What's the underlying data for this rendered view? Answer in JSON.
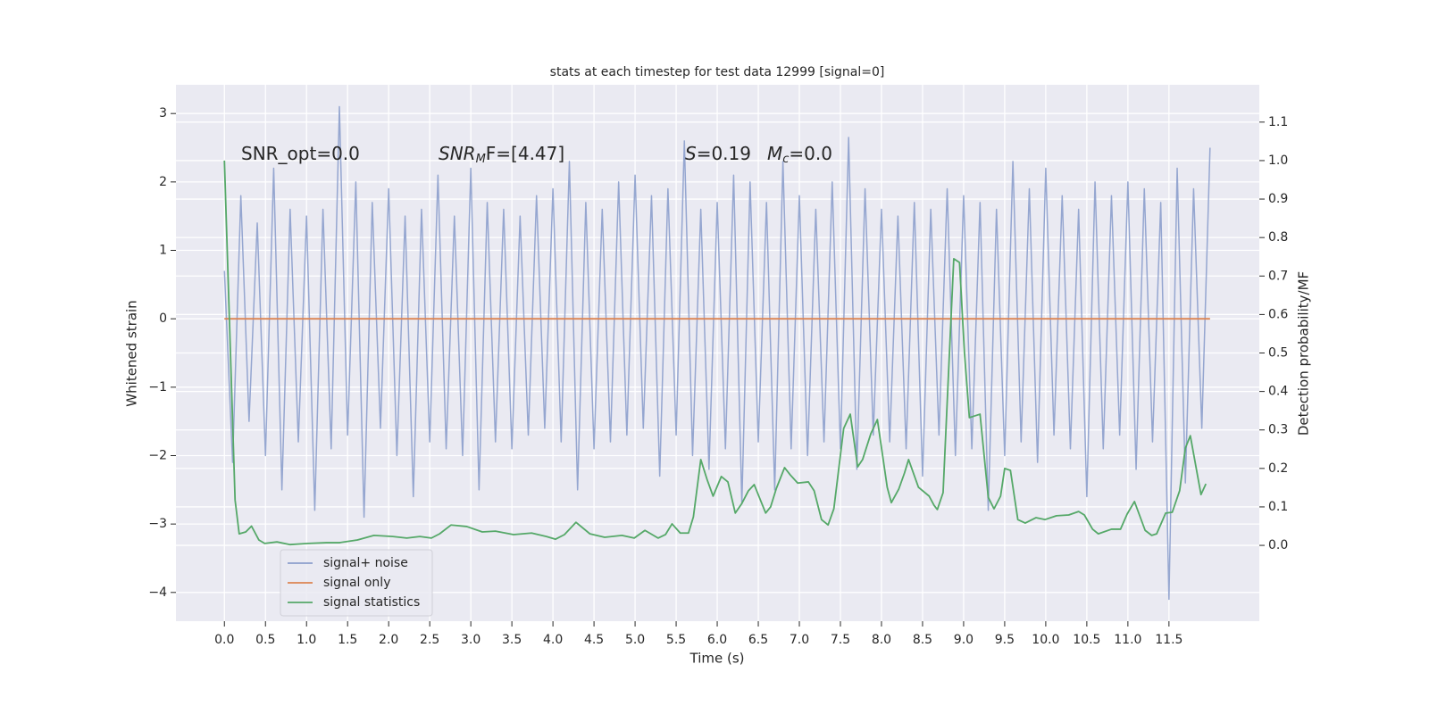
{
  "chart_data": {
    "type": "line",
    "title": "stats at each timestep for test data 12999 [signal=0]",
    "xlabel": "Time (s)",
    "ylabel": "Whitened strain",
    "y2label": "Detection probability/MF",
    "annotations": [
      [
        "SNR_opt=0.0"
      ],
      [
        "SNR",
        "M",
        "F=[4.47]"
      ],
      [
        "S",
        "=0.19"
      ],
      [
        "M",
        "c",
        "=0.0"
      ]
    ],
    "xlim": [
      -0.59,
      12.6
    ],
    "ylim": [
      -4.42,
      3.42
    ],
    "y2lim": [
      -0.197,
      1.197
    ],
    "xticks": [
      {
        "value": 0,
        "label": "0.0"
      },
      {
        "value": 0.5,
        "label": "0.5"
      },
      {
        "value": 1,
        "label": "1.0"
      },
      {
        "value": 1.5,
        "label": "1.5"
      },
      {
        "value": 2,
        "label": "2.0"
      },
      {
        "value": 2.5,
        "label": "2.5"
      },
      {
        "value": 3,
        "label": "3.0"
      },
      {
        "value": 3.5,
        "label": "3.5"
      },
      {
        "value": 4,
        "label": "4.0"
      },
      {
        "value": 4.5,
        "label": "4.5"
      },
      {
        "value": 5,
        "label": "5.0"
      },
      {
        "value": 5.5,
        "label": "5.5"
      },
      {
        "value": 6,
        "label": "6.0"
      },
      {
        "value": 6.5,
        "label": "6.5"
      },
      {
        "value": 7,
        "label": "7.0"
      },
      {
        "value": 7.5,
        "label": "7.5"
      },
      {
        "value": 8,
        "label": "8.0"
      },
      {
        "value": 8.5,
        "label": "8.5"
      },
      {
        "value": 9,
        "label": "9.0"
      },
      {
        "value": 9.5,
        "label": "9.5"
      },
      {
        "value": 10,
        "label": "10.0"
      },
      {
        "value": 10.5,
        "label": "10.5"
      },
      {
        "value": 11,
        "label": "11.0"
      },
      {
        "value": 11.5,
        "label": "11.5"
      }
    ],
    "yticks": [
      {
        "value": -4,
        "label": "−4"
      },
      {
        "value": -3,
        "label": "−3"
      },
      {
        "value": -2,
        "label": "−2"
      },
      {
        "value": -1,
        "label": "−1"
      },
      0,
      1,
      2,
      3
    ],
    "y2ticks": [
      {
        "value": 0,
        "label": "0.0"
      },
      {
        "value": 0.1,
        "label": "0.1"
      },
      {
        "value": 0.2,
        "label": "0.2"
      },
      {
        "value": 0.3,
        "label": "0.3"
      },
      {
        "value": 0.4,
        "label": "0.4"
      },
      {
        "value": 0.5,
        "label": "0.5"
      },
      {
        "value": 0.6,
        "label": "0.6"
      },
      {
        "value": 0.7,
        "label": "0.7"
      },
      {
        "value": 0.8,
        "label": "0.8"
      },
      {
        "value": 0.9,
        "label": "0.9"
      },
      {
        "value": 1.0,
        "label": "1.0"
      },
      {
        "value": 1.1,
        "label": "1.1"
      }
    ],
    "grid": true,
    "legend": "lower left",
    "series": [
      {
        "name": "signal+ noise",
        "color": "#8c9fcc",
        "axis": "y",
        "x": [
          0,
          0.1,
          0.2,
          0.3,
          0.4,
          0.5,
          0.6,
          0.7,
          0.8,
          0.9,
          1,
          1.1,
          1.2,
          1.3,
          1.4,
          1.5,
          1.6,
          1.7,
          1.8,
          1.9,
          2,
          2.1,
          2.2,
          2.3,
          2.4,
          2.5,
          2.6,
          2.7,
          2.8,
          2.9,
          3,
          3.1,
          3.2,
          3.3,
          3.4,
          3.5,
          3.6,
          3.7,
          3.8,
          3.9,
          4,
          4.1,
          4.2,
          4.3,
          4.4,
          4.5,
          4.6,
          4.7,
          4.8,
          4.9,
          5,
          5.1,
          5.2,
          5.3,
          5.4,
          5.5,
          5.6,
          5.7,
          5.8,
          5.9,
          6,
          6.1,
          6.2,
          6.3,
          6.4,
          6.5,
          6.6,
          6.7,
          6.8,
          6.9,
          7,
          7.1,
          7.2,
          7.3,
          7.4,
          7.5,
          7.6,
          7.7,
          7.8,
          7.9,
          8,
          8.1,
          8.2,
          8.3,
          8.4,
          8.5,
          8.6,
          8.7,
          8.8,
          8.9,
          9,
          9.1,
          9.2,
          9.3,
          9.4,
          9.5,
          9.6,
          9.7,
          9.8,
          9.9,
          10,
          10.1,
          10.2,
          10.3,
          10.4,
          10.5,
          10.6,
          10.7,
          10.8,
          10.9,
          11,
          11.1,
          11.2,
          11.3,
          11.4,
          11.5,
          11.6,
          11.7,
          11.8,
          11.9,
          12
        ],
        "values": [
          0.7,
          -2.1,
          1.8,
          -1.5,
          1.4,
          -2.0,
          2.2,
          -2.5,
          1.6,
          -1.8,
          1.5,
          -2.8,
          1.6,
          -1.9,
          3.1,
          -1.7,
          2.0,
          -2.9,
          1.7,
          -1.6,
          1.9,
          -2.0,
          1.5,
          -2.6,
          1.6,
          -1.8,
          2.1,
          -1.9,
          1.5,
          -2.0,
          2.2,
          -2.5,
          1.7,
          -1.8,
          1.6,
          -1.9,
          1.5,
          -1.7,
          1.8,
          -1.6,
          1.9,
          -1.8,
          2.3,
          -2.5,
          1.7,
          -1.9,
          1.6,
          -1.8,
          2.0,
          -1.7,
          2.1,
          -1.6,
          1.8,
          -2.3,
          1.9,
          -1.7,
          2.6,
          -2.0,
          1.6,
          -2.2,
          1.7,
          -1.9,
          2.1,
          -2.7,
          2.0,
          -1.8,
          1.7,
          -2.5,
          2.3,
          -1.9,
          1.8,
          -2.0,
          1.6,
          -1.8,
          2.0,
          -1.9,
          2.65,
          -2.2,
          1.9,
          -1.7,
          1.6,
          -1.8,
          1.5,
          -1.9,
          1.7,
          -2.3,
          1.6,
          -1.7,
          1.9,
          -2.0,
          1.8,
          -1.9,
          1.7,
          -2.8,
          1.6,
          -2.0,
          2.3,
          -1.8,
          1.9,
          -2.1,
          2.2,
          -1.7,
          1.8,
          -1.9,
          1.6,
          -2.6,
          2.0,
          -1.9,
          1.8,
          -1.7,
          2.0,
          -2.2,
          1.9,
          -1.8,
          1.7,
          -4.1,
          2.2,
          -2.4,
          1.9,
          -1.6,
          2.5
        ]
      },
      {
        "name": "signal only",
        "color": "#dd8452",
        "axis": "y",
        "x": [
          0,
          12
        ],
        "values": [
          0,
          0
        ]
      },
      {
        "name": "signal statistics",
        "color": "#55a868",
        "axis": "y2",
        "x": [
          0,
          0.13,
          0.18,
          0.26,
          0.33,
          0.42,
          0.49,
          0.64,
          0.8,
          1.02,
          1.24,
          1.4,
          1.62,
          1.82,
          2.05,
          2.22,
          2.38,
          2.52,
          2.62,
          2.76,
          2.95,
          3.14,
          3.3,
          3.52,
          3.74,
          3.92,
          4.03,
          4.14,
          4.28,
          4.45,
          4.63,
          4.84,
          4.99,
          5.12,
          5.28,
          5.37,
          5.45,
          5.55,
          5.65,
          5.71,
          5.8,
          5.88,
          5.95,
          6.05,
          6.13,
          6.22,
          6.3,
          6.38,
          6.45,
          6.59,
          6.65,
          6.72,
          6.82,
          6.89,
          6.98,
          7.11,
          7.18,
          7.27,
          7.35,
          7.42,
          7.54,
          7.62,
          7.71,
          7.77,
          7.87,
          7.95,
          8.07,
          8.12,
          8.21,
          8.28,
          8.33,
          8.45,
          8.58,
          8.64,
          8.68,
          8.75,
          8.82,
          8.88,
          8.95,
          9.01,
          9.07,
          9.2,
          9.3,
          9.37,
          9.45,
          9.5,
          9.57,
          9.66,
          9.75,
          9.88,
          9.99,
          10.13,
          10.28,
          10.4,
          10.47,
          10.57,
          10.64,
          10.8,
          10.91,
          10.99,
          11.08,
          11.21,
          11.29,
          11.35,
          11.46,
          11.54,
          11.63,
          11.7,
          11.76,
          11.89,
          11.95
        ],
        "values": [
          1.0,
          0.118,
          0.03,
          0.035,
          0.05,
          0.014,
          0.005,
          0.009,
          0.002,
          0.005,
          0.007,
          0.007,
          0.014,
          0.026,
          0.023,
          0.019,
          0.023,
          0.019,
          0.03,
          0.053,
          0.049,
          0.035,
          0.037,
          0.028,
          0.032,
          0.023,
          0.016,
          0.028,
          0.06,
          0.03,
          0.021,
          0.026,
          0.019,
          0.039,
          0.019,
          0.028,
          0.056,
          0.032,
          0.032,
          0.074,
          0.223,
          0.169,
          0.128,
          0.179,
          0.165,
          0.084,
          0.109,
          0.142,
          0.158,
          0.084,
          0.1,
          0.148,
          0.202,
          0.183,
          0.162,
          0.165,
          0.142,
          0.067,
          0.053,
          0.095,
          0.304,
          0.341,
          0.204,
          0.223,
          0.29,
          0.327,
          0.151,
          0.111,
          0.146,
          0.188,
          0.223,
          0.151,
          0.128,
          0.104,
          0.093,
          0.137,
          0.466,
          0.745,
          0.735,
          0.501,
          0.332,
          0.341,
          0.125,
          0.095,
          0.128,
          0.2,
          0.195,
          0.067,
          0.058,
          0.072,
          0.067,
          0.077,
          0.079,
          0.088,
          0.079,
          0.042,
          0.03,
          0.042,
          0.042,
          0.081,
          0.114,
          0.039,
          0.026,
          0.03,
          0.084,
          0.086,
          0.142,
          0.253,
          0.285,
          0.132,
          0.16
        ]
      }
    ]
  }
}
